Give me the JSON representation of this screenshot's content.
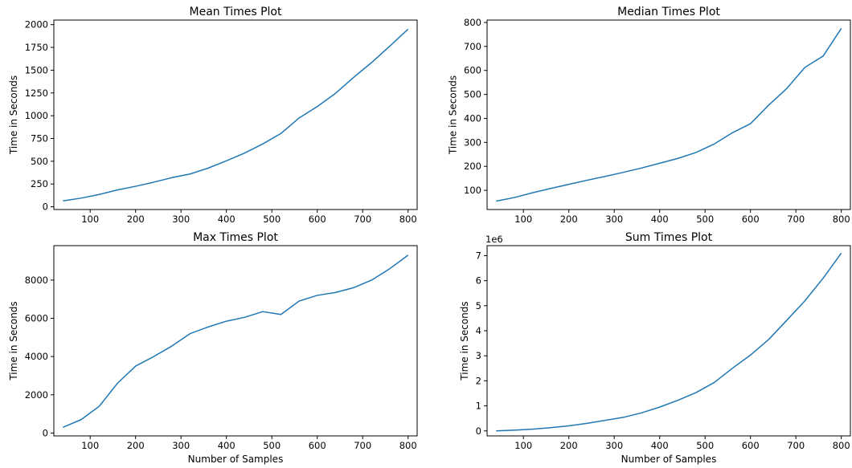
{
  "figure": {
    "line_color": "#1f77b4",
    "axes_color": "#000000",
    "background": "#ffffff"
  },
  "chart_data": [
    {
      "type": "line",
      "title": "Mean Times Plot",
      "xlabel": "",
      "ylabel": "Time in Seconds",
      "xlim": [
        20,
        820
      ],
      "ylim": [
        -30,
        2050
      ],
      "x_ticks": [
        100,
        200,
        300,
        400,
        500,
        600,
        700,
        800
      ],
      "x_tick_labels": [
        "100",
        "200",
        "300",
        "400",
        "500",
        "600",
        "700",
        "800"
      ],
      "y_ticks": [
        0,
        250,
        500,
        750,
        1000,
        1250,
        1500,
        1750,
        2000
      ],
      "y_tick_labels": [
        "0",
        "250",
        "500",
        "750",
        "1000",
        "1250",
        "1500",
        "1750",
        "2000"
      ],
      "offset_text": "",
      "grid": false,
      "legend": "none",
      "series": [
        {
          "x": [
            40,
            80,
            120,
            160,
            200,
            240,
            280,
            320,
            360,
            400,
            440,
            480,
            520,
            560,
            600,
            640,
            680,
            720,
            760,
            800
          ],
          "y": [
            65,
            95,
            135,
            185,
            225,
            270,
            320,
            360,
            425,
            505,
            590,
            690,
            805,
            975,
            1100,
            1245,
            1420,
            1585,
            1765,
            1950
          ]
        }
      ]
    },
    {
      "type": "line",
      "title": "Median Times Plot",
      "xlabel": "",
      "ylabel": "Time in Seconds",
      "xlim": [
        20,
        820
      ],
      "ylim": [
        20,
        810
      ],
      "x_ticks": [
        100,
        200,
        300,
        400,
        500,
        600,
        700,
        800
      ],
      "x_tick_labels": [
        "100",
        "200",
        "300",
        "400",
        "500",
        "600",
        "700",
        "800"
      ],
      "y_ticks": [
        100,
        200,
        300,
        400,
        500,
        600,
        700,
        800
      ],
      "y_tick_labels": [
        "100",
        "200",
        "300",
        "400",
        "500",
        "600",
        "700",
        "800"
      ],
      "offset_text": "",
      "grid": false,
      "legend": "none",
      "series": [
        {
          "x": [
            40,
            80,
            120,
            160,
            200,
            240,
            280,
            320,
            360,
            400,
            440,
            480,
            520,
            560,
            600,
            640,
            680,
            720,
            760,
            800
          ],
          "y": [
            55,
            70,
            90,
            108,
            125,
            142,
            158,
            175,
            193,
            213,
            233,
            258,
            293,
            340,
            378,
            455,
            525,
            613,
            660,
            775
          ]
        }
      ]
    },
    {
      "type": "line",
      "title": "Max Times Plot",
      "xlabel": "Number of Samples",
      "ylabel": "Time in Seconds",
      "xlim": [
        20,
        820
      ],
      "ylim": [
        -150,
        9800
      ],
      "x_ticks": [
        100,
        200,
        300,
        400,
        500,
        600,
        700,
        800
      ],
      "x_tick_labels": [
        "100",
        "200",
        "300",
        "400",
        "500",
        "600",
        "700",
        "800"
      ],
      "y_ticks": [
        0,
        2000,
        4000,
        6000,
        8000
      ],
      "y_tick_labels": [
        "0",
        "2000",
        "4000",
        "6000",
        "8000"
      ],
      "offset_text": "",
      "grid": false,
      "legend": "none",
      "series": [
        {
          "x": [
            40,
            80,
            120,
            160,
            200,
            240,
            280,
            320,
            360,
            400,
            440,
            480,
            520,
            560,
            600,
            640,
            680,
            720,
            760,
            800
          ],
          "y": [
            300,
            700,
            1400,
            2600,
            3500,
            4000,
            4550,
            5200,
            5550,
            5850,
            6050,
            6350,
            6200,
            6900,
            7200,
            7350,
            7600,
            8000,
            8600,
            9300
          ]
        }
      ]
    },
    {
      "type": "line",
      "title": "Sum Times Plot",
      "xlabel": "Number of Samples",
      "ylabel": "Time in Seconds",
      "xlim": [
        20,
        820
      ],
      "ylim": [
        -0.2,
        7.4
      ],
      "x_ticks": [
        100,
        200,
        300,
        400,
        500,
        600,
        700,
        800
      ],
      "x_tick_labels": [
        "100",
        "200",
        "300",
        "400",
        "500",
        "600",
        "700",
        "800"
      ],
      "y_ticks": [
        0,
        1,
        2,
        3,
        4,
        5,
        6,
        7
      ],
      "y_tick_labels": [
        "0",
        "1",
        "2",
        "3",
        "4",
        "5",
        "6",
        "7"
      ],
      "offset_text": "1e6",
      "grid": false,
      "legend": "none",
      "series": [
        {
          "x": [
            40,
            80,
            120,
            160,
            200,
            240,
            280,
            320,
            360,
            400,
            440,
            480,
            520,
            560,
            600,
            640,
            680,
            720,
            760,
            800
          ],
          "y": [
            0.0,
            0.03,
            0.07,
            0.13,
            0.2,
            0.3,
            0.42,
            0.54,
            0.72,
            0.95,
            1.22,
            1.53,
            1.93,
            2.5,
            3.03,
            3.65,
            4.42,
            5.2,
            6.1,
            7.1
          ]
        }
      ]
    }
  ]
}
